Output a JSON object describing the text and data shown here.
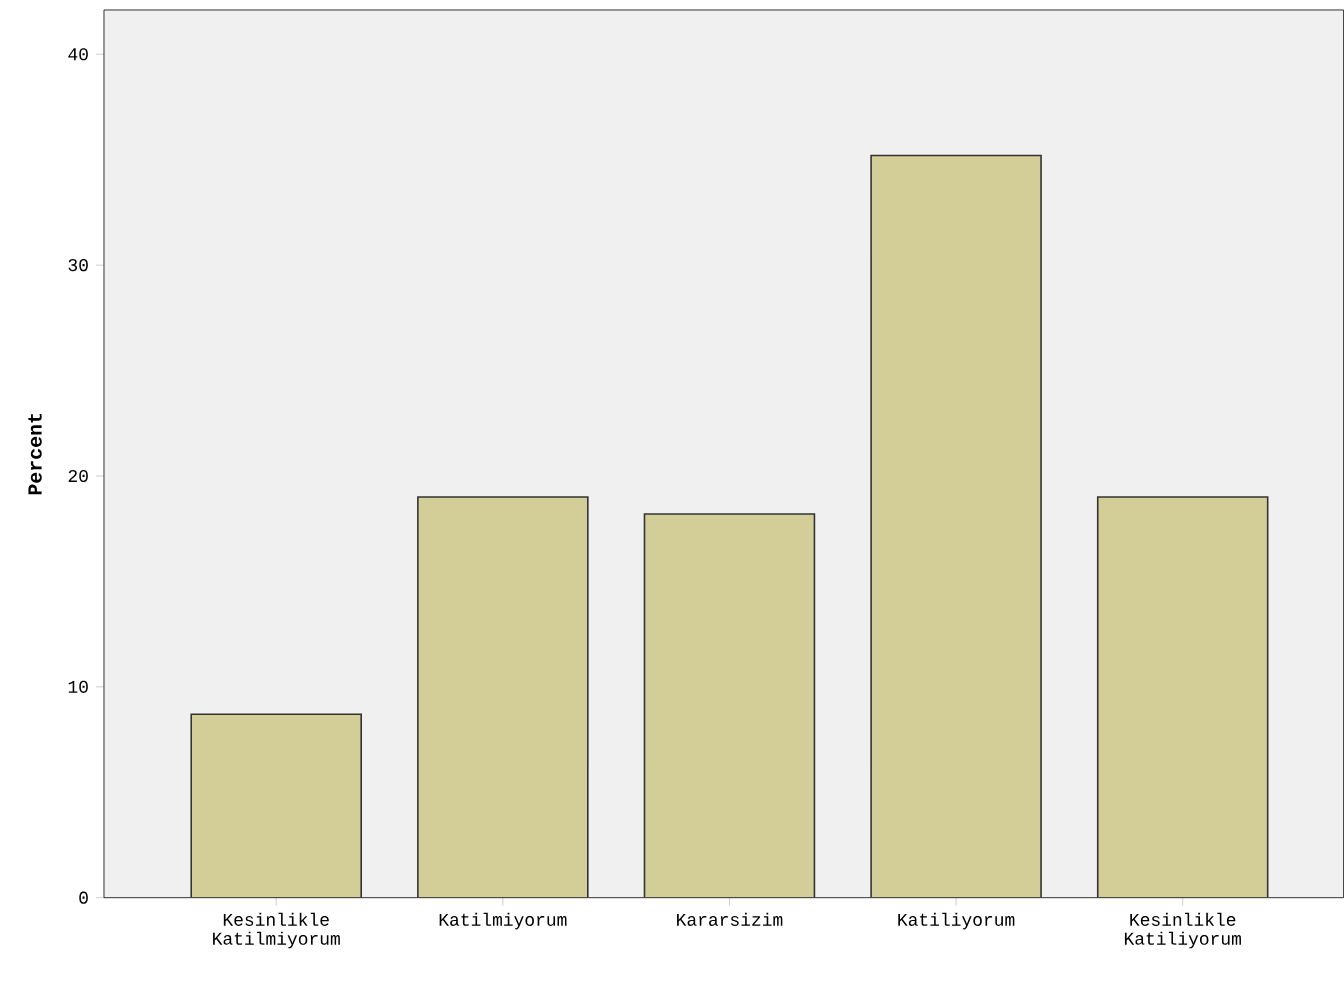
{
  "chart_data": {
    "type": "bar",
    "ylabel": "Percent",
    "categories": [
      "Kesinlikle Katilmiyorum",
      "Katilmiyorum",
      "Kararsizim",
      "Katiliyorum",
      "Kesinlikle Katiliyorum"
    ],
    "values": [
      8.7,
      19.0,
      18.2,
      35.2,
      19.0
    ],
    "color": "#d3ce97",
    "ylim": [
      0,
      42.1
    ],
    "yticks": [
      0,
      10,
      20,
      30,
      40
    ],
    "grid": false
  }
}
